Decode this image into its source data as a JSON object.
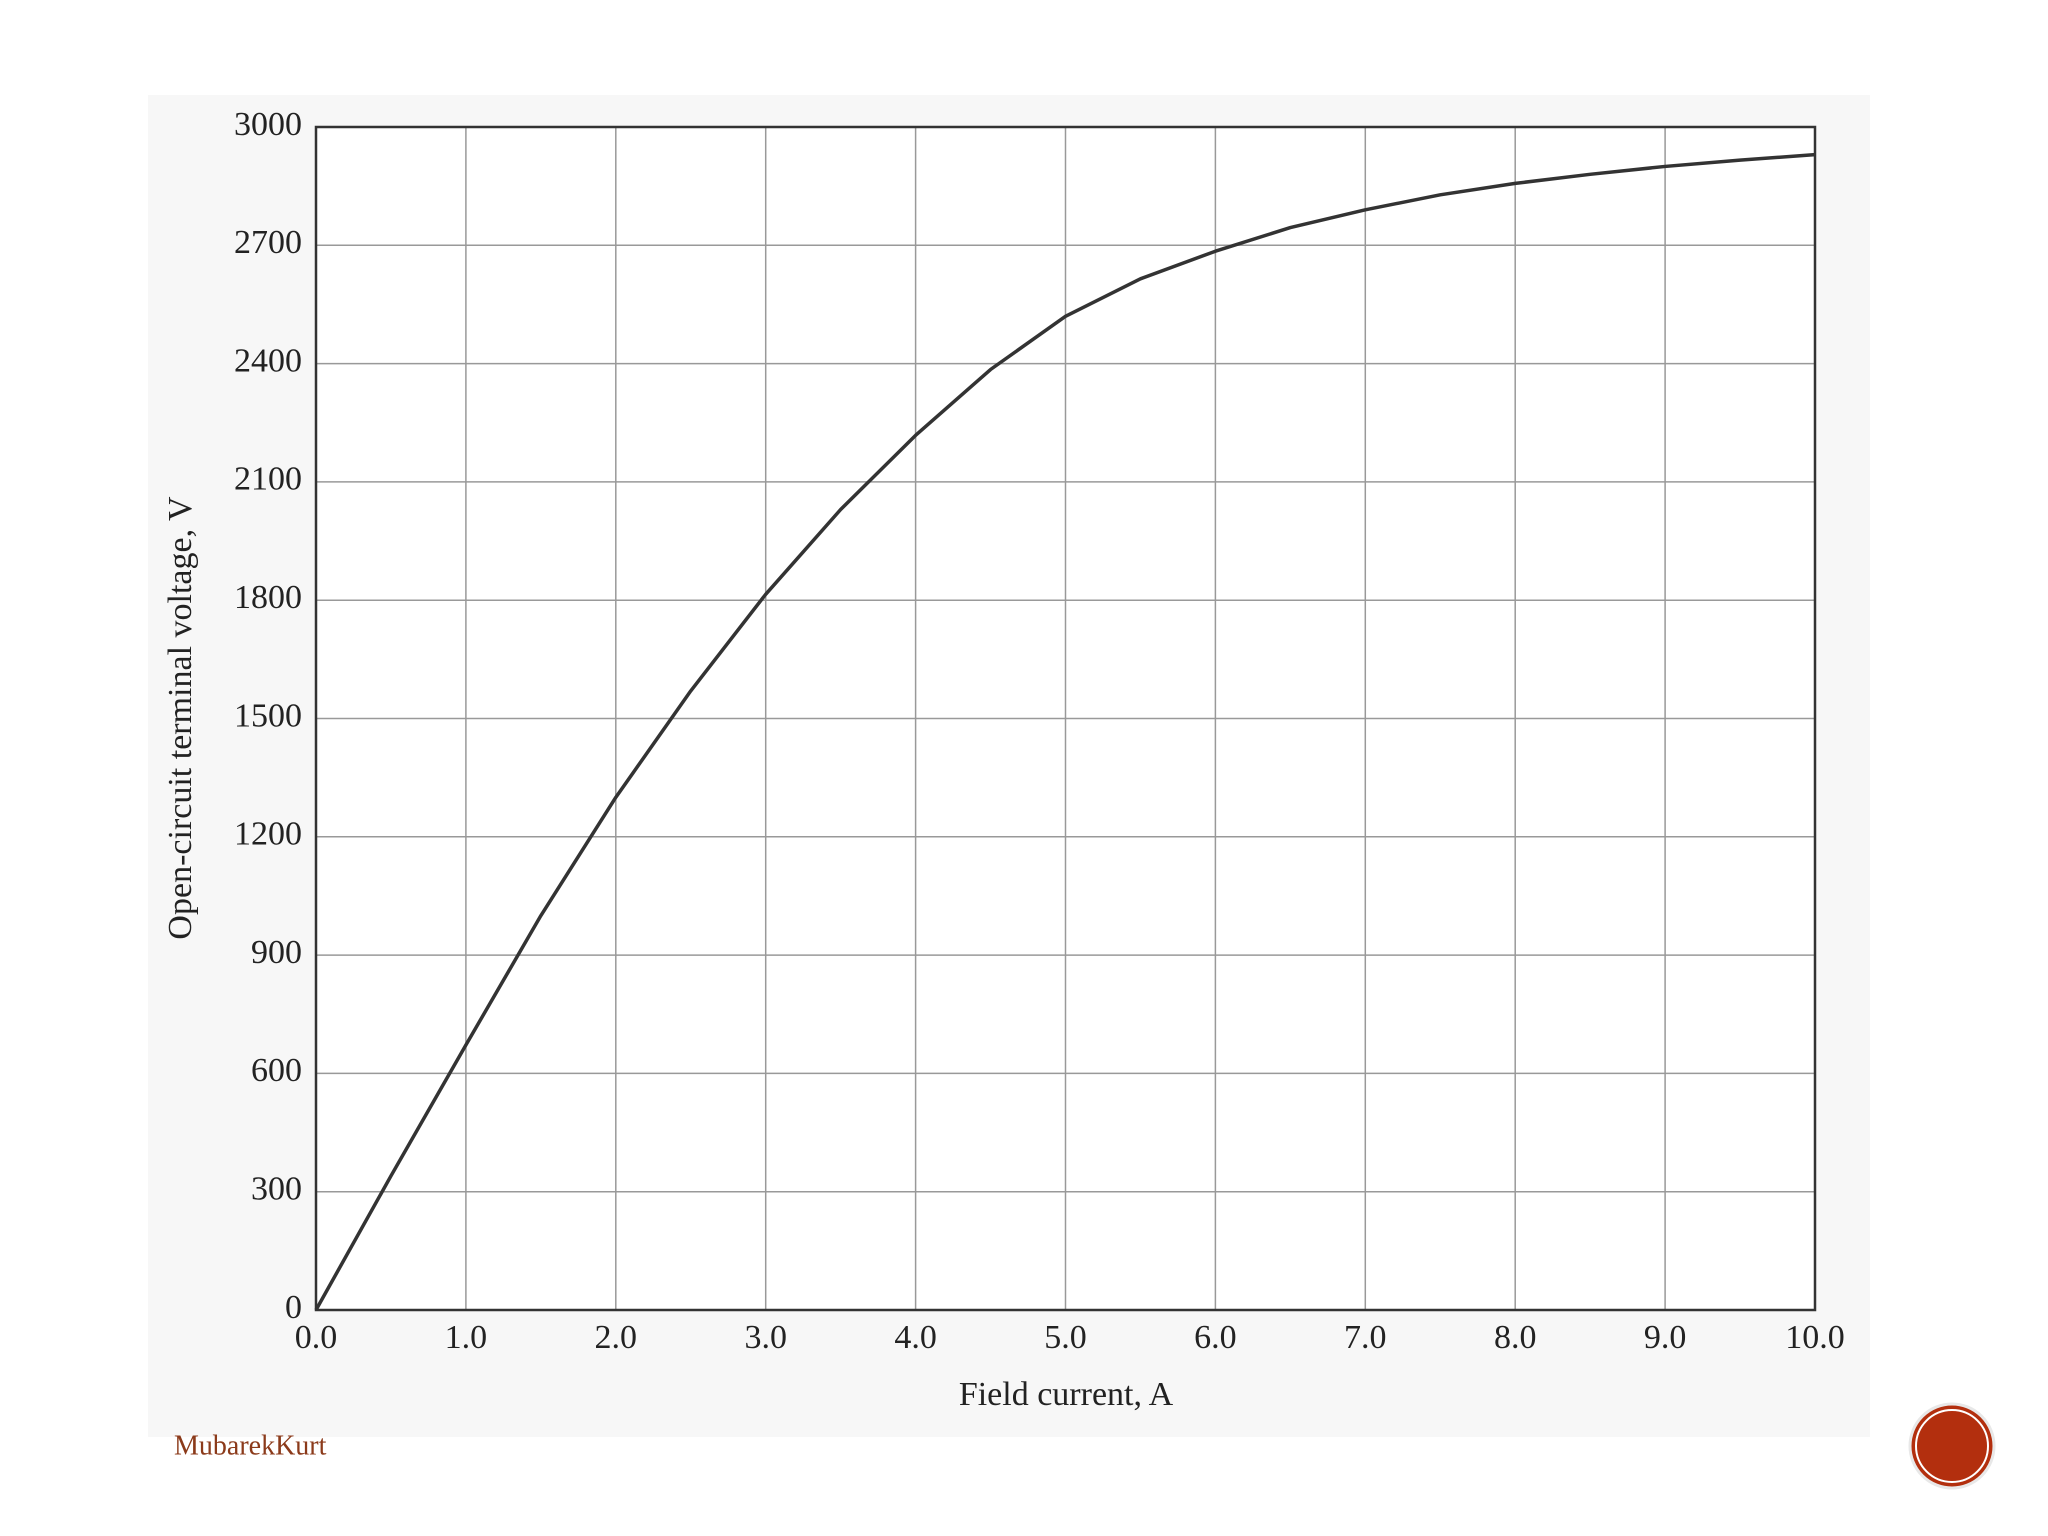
{
  "chart_data": {
    "type": "line",
    "xlabel": "Field current, A",
    "ylabel": "Open-circuit terminal voltage, V",
    "x": [
      0,
      0.5,
      1.0,
      1.5,
      2.0,
      2.5,
      3.0,
      3.5,
      4.0,
      4.5,
      5.0,
      5.5,
      6.0,
      6.5,
      7.0,
      7.5,
      8.0,
      8.5,
      9.0,
      9.5,
      10.0
    ],
    "values": [
      0,
      340,
      672,
      1000,
      1300,
      1570,
      1815,
      2030,
      2218,
      2385,
      2520,
      2615,
      2685,
      2745,
      2790,
      2828,
      2857,
      2880,
      2900,
      2916,
      2930
    ],
    "color": "#333333",
    "xlim": [
      0,
      10
    ],
    "xticks": [
      {
        "value": 0,
        "label": "0.0"
      },
      {
        "value": 1,
        "label": "1.0"
      },
      {
        "value": 2,
        "label": "2.0"
      },
      {
        "value": 3,
        "label": "3.0"
      },
      {
        "value": 4,
        "label": "4.0"
      },
      {
        "value": 5,
        "label": "5.0"
      },
      {
        "value": 6,
        "label": "6.0"
      },
      {
        "value": 7,
        "label": "7.0"
      },
      {
        "value": 8,
        "label": "8.0"
      },
      {
        "value": 9,
        "label": "9.0"
      },
      {
        "value": 10,
        "label": "10.0"
      }
    ],
    "ylim": [
      0,
      3000
    ],
    "yticks": [
      0,
      300,
      600,
      900,
      1200,
      1500,
      1800,
      2100,
      2400,
      2700,
      3000
    ],
    "grid": true
  },
  "footer_text": "MubarekKurt"
}
